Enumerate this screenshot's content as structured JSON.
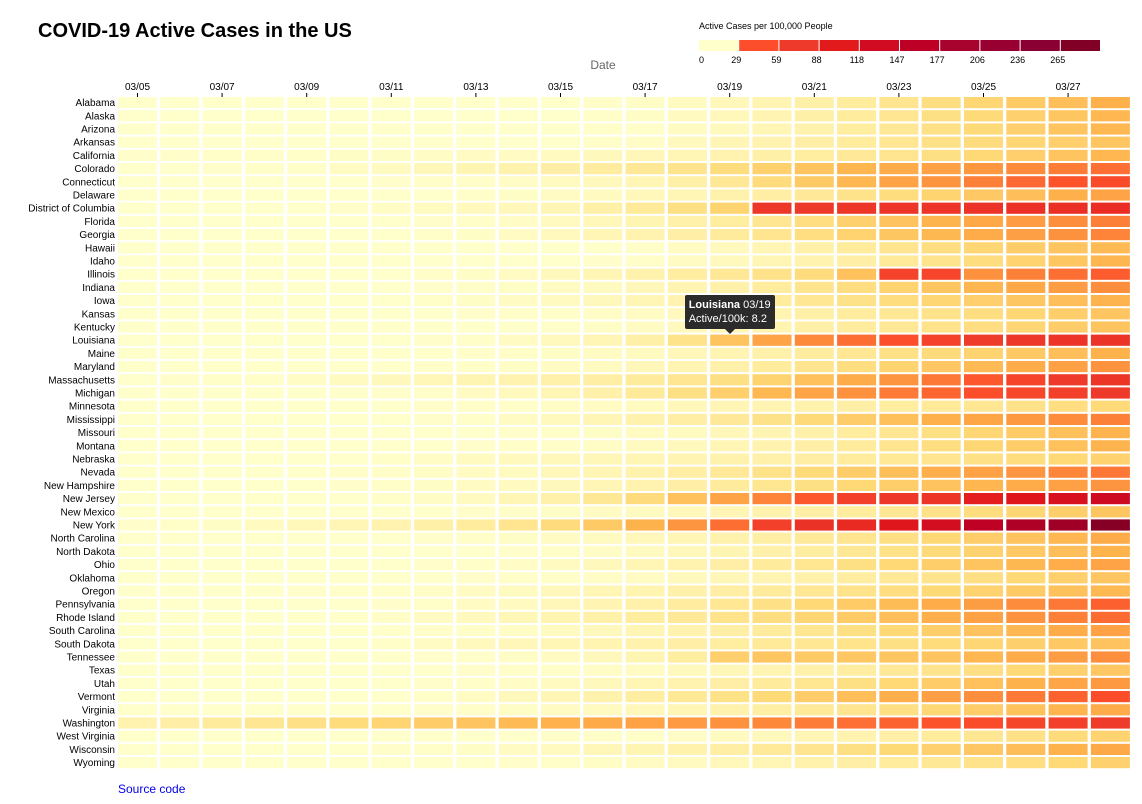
{
  "chart_data": {
    "type": "heatmap",
    "title": "COVID-19 Active Cases in the US",
    "xlabel": "Date",
    "legend": {
      "title": "Active Cases per 100,000 People",
      "thresholds": [
        0,
        29,
        59,
        88,
        118,
        147,
        177,
        206,
        236,
        265
      ],
      "colors": [
        "#ffffcc",
        "#fc4e2a",
        "#ee3a2a",
        "#e31a1c",
        "#d00b22",
        "#bd0026",
        "#a8022e",
        "#990032",
        "#8a0032",
        "#800026",
        "#7a0028"
      ]
    },
    "x_tick_labels": [
      "03/05",
      "03/07",
      "03/09",
      "03/11",
      "03/13",
      "03/15",
      "03/17",
      "03/19",
      "03/21",
      "03/23",
      "03/25",
      "03/27"
    ],
    "dates": [
      "03/05",
      "03/06",
      "03/07",
      "03/08",
      "03/09",
      "03/10",
      "03/11",
      "03/12",
      "03/13",
      "03/14",
      "03/15",
      "03/16",
      "03/17",
      "03/18",
      "03/19",
      "03/20",
      "03/21",
      "03/22",
      "03/23",
      "03/24",
      "03/25",
      "03/26",
      "03/27",
      "03/28"
    ],
    "states": [
      "Alabama",
      "Alaska",
      "Arizona",
      "Arkansas",
      "California",
      "Colorado",
      "Connecticut",
      "Delaware",
      "District of Columbia",
      "Florida",
      "Georgia",
      "Hawaii",
      "Idaho",
      "Illinois",
      "Indiana",
      "Iowa",
      "Kansas",
      "Kentucky",
      "Louisiana",
      "Maine",
      "Maryland",
      "Massachusetts",
      "Michigan",
      "Minnesota",
      "Mississippi",
      "Missouri",
      "Montana",
      "Nebraska",
      "Nevada",
      "New Hampshire",
      "New Jersey",
      "New Mexico",
      "New York",
      "North Carolina",
      "North Dakota",
      "Ohio",
      "Oklahoma",
      "Oregon",
      "Pennsylvania",
      "Rhode Island",
      "South Carolina",
      "South Dakota",
      "Tennessee",
      "Texas",
      "Utah",
      "Vermont",
      "Virginia",
      "Washington",
      "West Virginia",
      "Wisconsin",
      "Wyoming"
    ],
    "values": [
      [
        0,
        0,
        0,
        0,
        0,
        0,
        0,
        0,
        0,
        0,
        0,
        0.2,
        0.4,
        0.8,
        1.2,
        1.8,
        2.5,
        3.2,
        4.2,
        5.2,
        6.2,
        7.5,
        8.8,
        10.2
      ],
      [
        0,
        0,
        0,
        0,
        0,
        0,
        0,
        0,
        0,
        0,
        0,
        0.2,
        0.4,
        0.8,
        1.2,
        1.8,
        2.5,
        3.2,
        4.0,
        5.0,
        5.8,
        6.8,
        8.0,
        9.5
      ],
      [
        0,
        0,
        0,
        0,
        0,
        0,
        0,
        0,
        0,
        0,
        0,
        0.2,
        0.3,
        0.6,
        1.0,
        1.5,
        2.2,
        3.0,
        3.8,
        4.8,
        5.8,
        7.0,
        8.2,
        9.5
      ],
      [
        0,
        0,
        0,
        0,
        0,
        0,
        0,
        0,
        0,
        0,
        0,
        0.2,
        0.5,
        1.0,
        1.5,
        2.0,
        2.6,
        3.2,
        4.0,
        4.8,
        5.5,
        6.2,
        7.0,
        8.0
      ],
      [
        0.1,
        0.1,
        0.2,
        0.2,
        0.3,
        0.4,
        0.4,
        0.5,
        0.6,
        0.7,
        0.9,
        1.1,
        1.3,
        1.6,
        2.0,
        2.5,
        3.0,
        3.6,
        4.2,
        5.0,
        6.0,
        7.0,
        8.2,
        9.5
      ],
      [
        0,
        0,
        0.1,
        0.2,
        0.3,
        0.6,
        0.9,
        1.3,
        1.7,
        2.1,
        2.6,
        3.1,
        3.7,
        4.3,
        5.4,
        6.8,
        8.2,
        9.6,
        10.8,
        12.2,
        13.6,
        15.2,
        16.8,
        18.3
      ],
      [
        0,
        0,
        0,
        0,
        0,
        0,
        0.1,
        0.2,
        0.3,
        0.5,
        0.8,
        1.1,
        1.5,
        2.5,
        3.8,
        5.5,
        7.5,
        9.5,
        12.0,
        14.0,
        16.5,
        19.0,
        21.5,
        23.5
      ],
      [
        0,
        0,
        0,
        0,
        0,
        0,
        0,
        0,
        0.2,
        0.4,
        0.6,
        0.9,
        1.2,
        1.6,
        2.2,
        2.8,
        3.6,
        4.5,
        5.4,
        6.5,
        7.6,
        8.8,
        10.2,
        12.0
      ],
      [
        0,
        0,
        0,
        0,
        0,
        0.3,
        0.5,
        0.8,
        1.0,
        1.2,
        1.6,
        2.5,
        3.5,
        5.0,
        6.5,
        30.0,
        29.5,
        31.0,
        31.5,
        31.8,
        32.5,
        33.5,
        34.5,
        35.5
      ],
      [
        0,
        0,
        0,
        0,
        0,
        0,
        0,
        0.1,
        0.3,
        0.5,
        0.8,
        1.2,
        1.7,
        2.3,
        3.0,
        4.0,
        5.3,
        6.8,
        8.3,
        9.8,
        11.4,
        13.0,
        14.8,
        16.5
      ],
      [
        0,
        0,
        0,
        0,
        0,
        0,
        0,
        0.2,
        0.4,
        0.7,
        1.0,
        1.5,
        2.0,
        2.6,
        3.3,
        4.2,
        5.3,
        6.6,
        8.0,
        9.4,
        11.0,
        12.6,
        14.3,
        16.0
      ],
      [
        0,
        0,
        0,
        0,
        0,
        0,
        0,
        0,
        0,
        0,
        0,
        0,
        0.2,
        0.6,
        1.0,
        1.6,
        2.4,
        3.3,
        4.2,
        5.2,
        6.2,
        7.2,
        8.2,
        9.2
      ],
      [
        0,
        0,
        0,
        0,
        0,
        0,
        0,
        0,
        0,
        0,
        0,
        0.1,
        0.3,
        0.6,
        1.0,
        1.5,
        2.0,
        2.6,
        3.4,
        4.3,
        5.4,
        6.6,
        8.0,
        9.6
      ],
      [
        0,
        0,
        0,
        0,
        0,
        0,
        0,
        0.2,
        0.4,
        0.7,
        1.1,
        1.6,
        2.2,
        3.0,
        3.8,
        4.6,
        5.5,
        8.5,
        26.0,
        25.0,
        14.5,
        16.5,
        18.5,
        20.5
      ],
      [
        0,
        0,
        0,
        0,
        0,
        0,
        0,
        0.1,
        0.2,
        0.4,
        0.6,
        0.9,
        1.3,
        1.8,
        2.4,
        3.2,
        4.2,
        5.3,
        6.6,
        8.0,
        9.6,
        11.2,
        13.0,
        14.8
      ],
      [
        0,
        0,
        0,
        0,
        0,
        0,
        0,
        0.2,
        0.4,
        0.6,
        0.8,
        1.1,
        1.5,
        2.0,
        2.6,
        3.2,
        3.9,
        4.6,
        5.4,
        6.2,
        7.0,
        7.9,
        8.8,
        9.8
      ],
      [
        0,
        0,
        0,
        0,
        0,
        0,
        0,
        0,
        0.1,
        0.2,
        0.3,
        0.5,
        0.7,
        1.0,
        1.4,
        1.9,
        2.5,
        3.1,
        3.8,
        4.5,
        5.3,
        6.2,
        7.1,
        8.1
      ],
      [
        0,
        0,
        0,
        0,
        0,
        0,
        0,
        0,
        0,
        0,
        0.2,
        0.4,
        0.7,
        1.0,
        1.4,
        1.9,
        2.5,
        3.1,
        3.8,
        4.5,
        5.3,
        6.2,
        7.2,
        8.2
      ],
      [
        0,
        0,
        0,
        0,
        0,
        0,
        0,
        0.1,
        0.3,
        0.6,
        1.0,
        1.6,
        2.5,
        4.5,
        8.2,
        12.0,
        15.5,
        18.5,
        22.0,
        26.0,
        28.5,
        30.5,
        31.5,
        32.5
      ],
      [
        0,
        0,
        0,
        0,
        0,
        0,
        0,
        0,
        0.1,
        0.2,
        0.4,
        0.6,
        0.9,
        1.3,
        1.8,
        2.4,
        3.1,
        3.9,
        4.8,
        5.7,
        6.6,
        7.7,
        8.8,
        10.0
      ],
      [
        0,
        0,
        0,
        0,
        0,
        0,
        0,
        0.1,
        0.2,
        0.4,
        0.6,
        0.9,
        1.3,
        1.8,
        2.4,
        3.2,
        4.2,
        5.3,
        6.5,
        7.8,
        9.2,
        10.8,
        12.4,
        14.2
      ],
      [
        0,
        0.1,
        0.2,
        0.3,
        0.5,
        0.8,
        1.1,
        1.4,
        1.7,
        2.0,
        2.4,
        2.8,
        3.3,
        4.0,
        5.0,
        6.5,
        8.5,
        11.0,
        14.0,
        17.5,
        21.0,
        25.5,
        29.0,
        32.0
      ],
      [
        0,
        0,
        0,
        0,
        0,
        0,
        0.1,
        0.3,
        0.6,
        1.0,
        1.6,
        2.4,
        3.4,
        5.0,
        7.0,
        9.5,
        12.0,
        14.5,
        17.0,
        19.5,
        22.0,
        24.5,
        27.0,
        29.0
      ],
      [
        0,
        0,
        0,
        0,
        0,
        0,
        0,
        0.1,
        0.2,
        0.3,
        0.5,
        0.7,
        0.9,
        1.2,
        1.5,
        1.8,
        2.2,
        2.6,
        3.0,
        3.5,
        4.0,
        4.6,
        5.2,
        5.8
      ],
      [
        0,
        0,
        0,
        0,
        0,
        0,
        0,
        0.1,
        0.3,
        0.6,
        1.0,
        1.5,
        2.1,
        2.8,
        3.6,
        4.6,
        5.8,
        7.2,
        8.6,
        10.2,
        11.8,
        13.4,
        15.0,
        16.5
      ],
      [
        0,
        0,
        0,
        0,
        0,
        0,
        0,
        0,
        0,
        0.1,
        0.2,
        0.4,
        0.6,
        0.9,
        1.3,
        1.8,
        2.4,
        3.1,
        4.0,
        5.0,
        6.2,
        7.4,
        8.6,
        9.8
      ],
      [
        0,
        0,
        0,
        0,
        0,
        0,
        0,
        0,
        0.1,
        0.2,
        0.3,
        0.5,
        0.8,
        1.1,
        1.5,
        2.0,
        2.6,
        3.3,
        4.2,
        5.2,
        6.2,
        7.3,
        8.5,
        9.8
      ],
      [
        0,
        0,
        0,
        0,
        0,
        0,
        0.2,
        0.5,
        0.8,
        1.0,
        1.2,
        1.4,
        1.6,
        1.8,
        2.1,
        2.4,
        2.8,
        3.2,
        3.7,
        4.2,
        4.8,
        5.4,
        6.0,
        6.7
      ],
      [
        0,
        0,
        0,
        0,
        0,
        0.1,
        0.2,
        0.4,
        0.6,
        0.9,
        1.2,
        1.6,
        2.1,
        2.8,
        3.6,
        4.6,
        5.8,
        7.2,
        8.8,
        10.5,
        12.2,
        14.0,
        15.8,
        17.5
      ],
      [
        0,
        0,
        0,
        0,
        0,
        0.1,
        0.2,
        0.4,
        0.6,
        0.8,
        1.1,
        1.5,
        2.0,
        2.6,
        3.3,
        4.1,
        5.0,
        6.0,
        7.1,
        8.3,
        9.6,
        11.0,
        12.5,
        14.0
      ],
      [
        0,
        0,
        0,
        0,
        0,
        0,
        0.2,
        0.5,
        0.9,
        1.5,
        2.4,
        3.8,
        5.5,
        8.5,
        12.0,
        16.0,
        21.0,
        27.0,
        30.5,
        32.0,
        43.0,
        48.0,
        53.0,
        62.0
      ],
      [
        0,
        0,
        0,
        0,
        0,
        0,
        0,
        0,
        0.1,
        0.2,
        0.4,
        0.6,
        0.9,
        1.2,
        1.6,
        2.1,
        2.6,
        3.2,
        3.9,
        4.6,
        5.4,
        6.2,
        7.1,
        8.0
      ],
      [
        0.1,
        0.2,
        0.4,
        0.8,
        1.2,
        1.6,
        2.0,
        2.5,
        3.2,
        4.2,
        5.5,
        7.5,
        10.0,
        14.0,
        18.5,
        27.0,
        33.0,
        37.0,
        48.0,
        56.0,
        85.0,
        95.0,
        102.0,
        115.0
      ],
      [
        0,
        0,
        0,
        0,
        0,
        0,
        0,
        0.1,
        0.2,
        0.4,
        0.6,
        0.9,
        1.2,
        1.6,
        2.1,
        2.7,
        3.4,
        4.2,
        5.1,
        6.1,
        7.2,
        8.3,
        9.5,
        10.8
      ],
      [
        0,
        0,
        0,
        0,
        0,
        0,
        0,
        0,
        0,
        0.1,
        0.3,
        0.5,
        0.8,
        1.2,
        1.7,
        2.3,
        3.0,
        3.8,
        4.7,
        5.7,
        6.7,
        7.7,
        8.8,
        9.9
      ],
      [
        0,
        0,
        0,
        0,
        0,
        0,
        0,
        0.1,
        0.3,
        0.5,
        0.8,
        1.1,
        1.5,
        2.0,
        2.6,
        3.3,
        4.1,
        5.0,
        6.0,
        7.1,
        8.2,
        9.4,
        10.7,
        12.0
      ],
      [
        0,
        0,
        0,
        0,
        0,
        0,
        0,
        0,
        0.1,
        0.2,
        0.3,
        0.5,
        0.7,
        1.0,
        1.4,
        1.8,
        2.3,
        2.9,
        3.6,
        4.3,
        5.1,
        6.0,
        6.9,
        7.9
      ],
      [
        0,
        0,
        0,
        0,
        0.1,
        0.2,
        0.3,
        0.5,
        0.7,
        0.9,
        1.2,
        1.5,
        1.9,
        2.3,
        2.8,
        3.3,
        3.9,
        4.5,
        5.2,
        5.9,
        6.7,
        7.5,
        8.4,
        9.3
      ],
      [
        0,
        0,
        0,
        0,
        0,
        0,
        0.1,
        0.3,
        0.6,
        0.9,
        1.3,
        1.8,
        2.4,
        3.1,
        3.9,
        4.8,
        6.0,
        7.4,
        9.0,
        10.8,
        12.8,
        15.0,
        17.5,
        20.0
      ],
      [
        0,
        0,
        0,
        0,
        0,
        0,
        0.2,
        0.6,
        1.0,
        1.4,
        1.9,
        2.4,
        3.0,
        3.6,
        4.4,
        5.2,
        6.2,
        7.4,
        8.8,
        10.4,
        12.2,
        14.2,
        16.4,
        18.8
      ],
      [
        0,
        0,
        0,
        0,
        0,
        0,
        0,
        0.1,
        0.3,
        0.5,
        0.8,
        1.1,
        1.5,
        2.0,
        2.6,
        3.3,
        4.1,
        5.0,
        6.0,
        7.1,
        8.3,
        9.5,
        10.8,
        12.1
      ],
      [
        0,
        0,
        0,
        0,
        0,
        0,
        0.2,
        0.6,
        1.0,
        1.3,
        1.6,
        1.9,
        2.2,
        2.6,
        3.0,
        3.4,
        3.9,
        4.4,
        5.0,
        5.6,
        6.2,
        6.9,
        7.6,
        8.3
      ],
      [
        0,
        0,
        0,
        0,
        0,
        0,
        0,
        0.1,
        0.2,
        0.4,
        0.7,
        1.1,
        1.7,
        3.0,
        7.0,
        8.0,
        7.5,
        7.8,
        8.0,
        8.2,
        9.5,
        11.0,
        12.8,
        14.8
      ],
      [
        0,
        0,
        0,
        0,
        0,
        0,
        0,
        0,
        0.1,
        0.2,
        0.3,
        0.5,
        0.7,
        1.0,
        1.4,
        1.8,
        2.3,
        2.9,
        3.6,
        4.3,
        5.1,
        6.0,
        6.9,
        7.8
      ],
      [
        0,
        0,
        0,
        0,
        0,
        0,
        0,
        0.1,
        0.3,
        0.5,
        0.8,
        1.1,
        1.5,
        2.0,
        2.6,
        3.3,
        4.1,
        5.0,
        6.0,
        7.2,
        8.5,
        10.0,
        11.6,
        13.4
      ],
      [
        0,
        0,
        0,
        0,
        0,
        0,
        0,
        0.3,
        0.7,
        1.1,
        1.6,
        2.2,
        2.9,
        3.7,
        4.7,
        5.8,
        7.2,
        8.8,
        10.6,
        12.6,
        14.8,
        17.2,
        19.8,
        22.5
      ],
      [
        0,
        0,
        0,
        0,
        0,
        0,
        0,
        0.1,
        0.2,
        0.4,
        0.6,
        0.9,
        1.2,
        1.6,
        2.1,
        2.7,
        3.4,
        4.2,
        5.1,
        6.1,
        7.2,
        8.4,
        9.7,
        11.0
      ],
      [
        2.0,
        2.6,
        3.3,
        4.0,
        4.8,
        5.6,
        6.4,
        7.3,
        8.2,
        9.1,
        10.1,
        11.1,
        12.1,
        13.2,
        14.4,
        15.6,
        16.9,
        18.3,
        19.8,
        21.4,
        23.1,
        24.9,
        26.8,
        28.8
      ],
      [
        0,
        0,
        0,
        0,
        0,
        0,
        0,
        0,
        0,
        0,
        0.1,
        0.2,
        0.3,
        0.5,
        0.8,
        1.1,
        1.5,
        2.0,
        2.6,
        3.3,
        4.0,
        4.8,
        5.7,
        6.6
      ],
      [
        0,
        0,
        0,
        0,
        0,
        0,
        0.1,
        0.2,
        0.4,
        0.6,
        0.9,
        1.3,
        1.7,
        2.2,
        2.8,
        3.4,
        4.2,
        5.0,
        5.9,
        6.8,
        7.8,
        8.9,
        10.0,
        11.2
      ],
      [
        0,
        0,
        0,
        0,
        0,
        0,
        0,
        0,
        0,
        0.1,
        0.2,
        0.4,
        0.6,
        0.9,
        1.2,
        1.6,
        2.1,
        2.6,
        3.2,
        3.8,
        4.5,
        5.2,
        6.0,
        6.8
      ]
    ]
  },
  "tooltip": {
    "state": "Louisiana",
    "date": "03/19",
    "line2": "Active/100k: 8.2"
  },
  "source_link": "Source code"
}
